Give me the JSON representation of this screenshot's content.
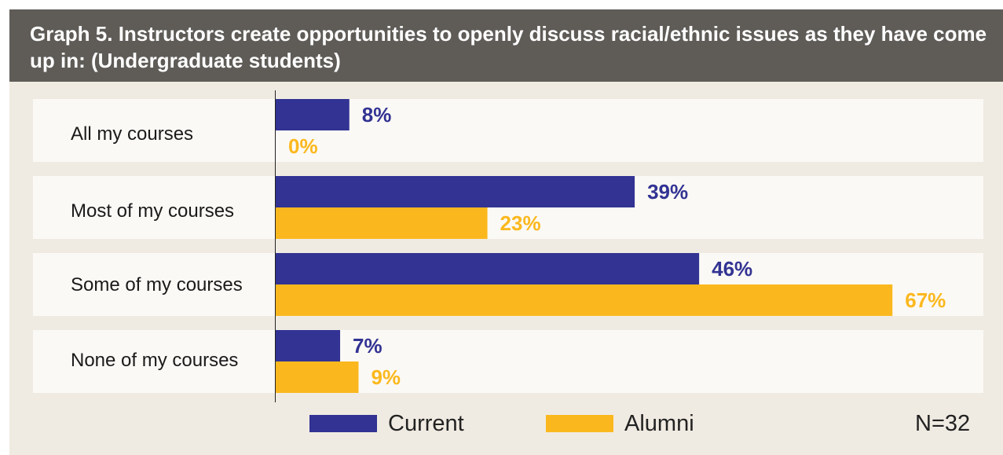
{
  "colors": {
    "current": "#323393",
    "alumni": "#fbb81e",
    "header": "#5f5c58",
    "background": "#f0ebe2",
    "row": "#fbf9f5"
  },
  "chart_data": {
    "type": "bar",
    "orientation": "horizontal",
    "title": "Graph 5. Instructors create opportunities to openly discuss racial/ethnic issues as they have come up in: (Undergraduate students)",
    "categories": [
      "All my courses",
      "Most of my courses",
      "Some of my courses",
      "None of my courses"
    ],
    "series": [
      {
        "name": "Current",
        "values": [
          8,
          39,
          46,
          7
        ],
        "labels": [
          "8%",
          "39%",
          "46%",
          "7%"
        ]
      },
      {
        "name": "Alumni",
        "values": [
          0,
          23,
          67,
          9
        ],
        "labels": [
          "0%",
          "23%",
          "67%",
          "9%"
        ]
      }
    ],
    "unit": "%",
    "xlim": [
      0,
      100
    ],
    "legend": "bottom",
    "note": "N=32"
  }
}
